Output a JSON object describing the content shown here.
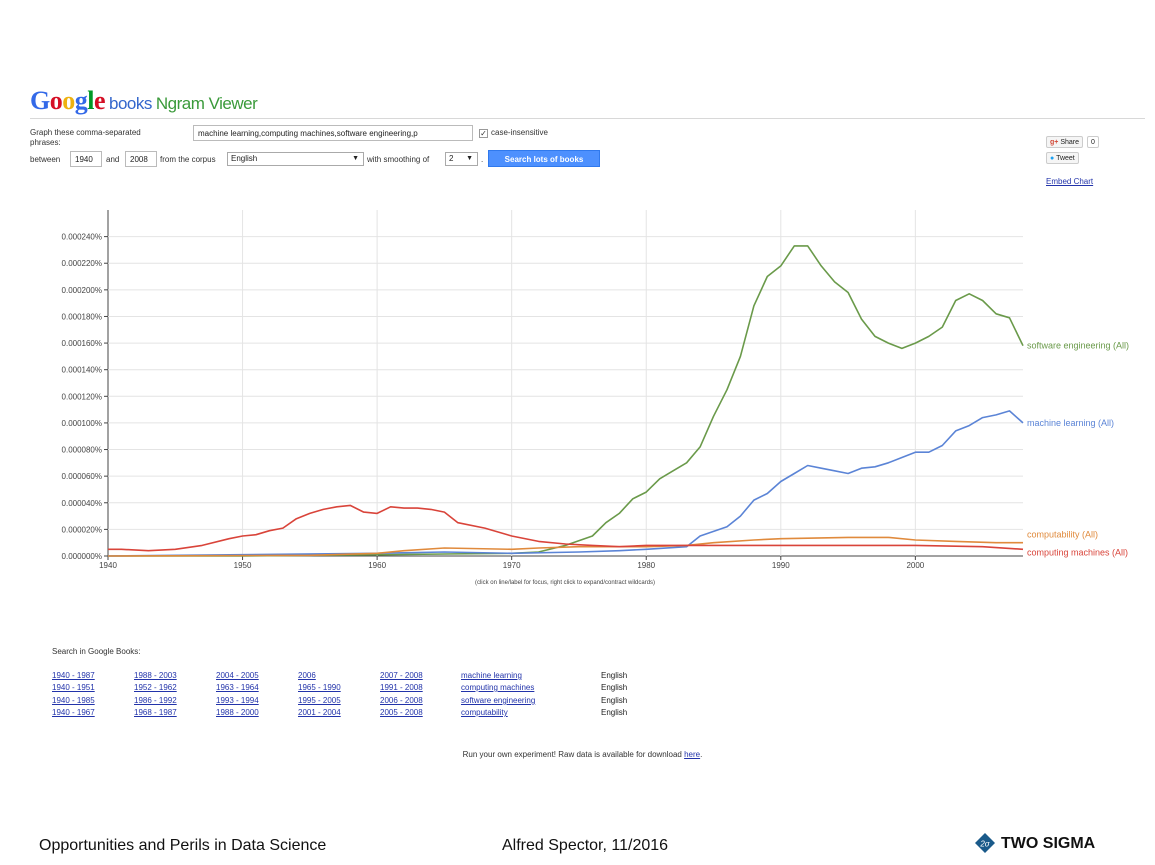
{
  "header": {
    "logo_google": "Google",
    "logo_books": "books",
    "logo_ngram": "Ngram Viewer"
  },
  "form": {
    "graph_label_line1": "Graph these comma-separated",
    "graph_label_line2": "phrases:",
    "phrases_value": "machine learning,computing machines,software engineering,p",
    "case_insensitive_label": "case-insensitive",
    "case_insensitive_checked": "✓",
    "between_label": "between",
    "start_year": "1940",
    "and_label": "and",
    "end_year": "2008",
    "corpus_label": "from the corpus",
    "corpus_value": "English",
    "smoothing_label": "with smoothing of",
    "smoothing_value": "2",
    "period": ".",
    "search_button": "Search lots of books"
  },
  "social": {
    "share_label": "Share",
    "share_count": "0",
    "tweet_label": "Tweet",
    "embed_label": "Embed Chart"
  },
  "chart_data": {
    "type": "line",
    "title": "",
    "xlabel": "",
    "ylabel": "",
    "xlim": [
      1940,
      2008
    ],
    "ylim": [
      0,
      0.00026
    ],
    "x_ticks": [
      "1940",
      "1950",
      "1960",
      "1970",
      "1980",
      "1990",
      "2000"
    ],
    "y_ticks": [
      "0.000000%",
      "0.000020%",
      "0.000040%",
      "0.000060%",
      "0.000080%",
      "0.000100%",
      "0.000120%",
      "0.000140%",
      "0.000160%",
      "0.000180%",
      "0.000200%",
      "0.000220%",
      "0.000240%"
    ],
    "grid": true,
    "legend": "labels at line ends (right)",
    "series": [
      {
        "name": "software engineering (All)",
        "color": "#6a9a4a",
        "points": [
          [
            1940,
            0
          ],
          [
            1950,
            0
          ],
          [
            1955,
            5e-07
          ],
          [
            1960,
            1e-06
          ],
          [
            1965,
            1.5e-06
          ],
          [
            1970,
            2e-06
          ],
          [
            1972,
            3e-06
          ],
          [
            1974,
            8e-06
          ],
          [
            1976,
            1.5e-05
          ],
          [
            1977,
            2.5e-05
          ],
          [
            1978,
            3.2e-05
          ],
          [
            1979,
            4.3e-05
          ],
          [
            1980,
            4.8e-05
          ],
          [
            1981,
            5.8e-05
          ],
          [
            1982,
            6.4e-05
          ],
          [
            1983,
            7e-05
          ],
          [
            1984,
            8.2e-05
          ],
          [
            1985,
            0.000105
          ],
          [
            1986,
            0.000125
          ],
          [
            1987,
            0.00015
          ],
          [
            1988,
            0.000188
          ],
          [
            1989,
            0.00021
          ],
          [
            1990,
            0.000218
          ],
          [
            1991,
            0.000233
          ],
          [
            1992,
            0.000233
          ],
          [
            1993,
            0.000218
          ],
          [
            1994,
            0.000206
          ],
          [
            1995,
            0.000198
          ],
          [
            1996,
            0.000178
          ],
          [
            1997,
            0.000165
          ],
          [
            1998,
            0.00016
          ],
          [
            1999,
            0.000156
          ],
          [
            2000,
            0.00016
          ],
          [
            2001,
            0.000165
          ],
          [
            2002,
            0.000172
          ],
          [
            2003,
            0.000192
          ],
          [
            2004,
            0.000197
          ],
          [
            2005,
            0.000192
          ],
          [
            2006,
            0.000182
          ],
          [
            2007,
            0.000179
          ],
          [
            2008,
            0.000158
          ]
        ]
      },
      {
        "name": "machine learning (All)",
        "color": "#5b84d6",
        "points": [
          [
            1940,
            0
          ],
          [
            1960,
            2e-06
          ],
          [
            1965,
            3e-06
          ],
          [
            1970,
            2e-06
          ],
          [
            1975,
            3e-06
          ],
          [
            1978,
            4e-06
          ],
          [
            1980,
            5e-06
          ],
          [
            1983,
            7e-06
          ],
          [
            1984,
            1.5e-05
          ],
          [
            1986,
            2.2e-05
          ],
          [
            1987,
            3e-05
          ],
          [
            1988,
            4.2e-05
          ],
          [
            1989,
            4.7e-05
          ],
          [
            1990,
            5.6e-05
          ],
          [
            1991,
            6.2e-05
          ],
          [
            1992,
            6.8e-05
          ],
          [
            1993,
            6.6e-05
          ],
          [
            1994,
            6.4e-05
          ],
          [
            1995,
            6.2e-05
          ],
          [
            1996,
            6.6e-05
          ],
          [
            1997,
            6.7e-05
          ],
          [
            1998,
            7e-05
          ],
          [
            1999,
            7.4e-05
          ],
          [
            2000,
            7.8e-05
          ],
          [
            2001,
            7.8e-05
          ],
          [
            2002,
            8.3e-05
          ],
          [
            2003,
            9.4e-05
          ],
          [
            2004,
            9.8e-05
          ],
          [
            2005,
            0.000104
          ],
          [
            2006,
            0.000106
          ],
          [
            2007,
            0.000109
          ],
          [
            2008,
            0.0001
          ]
        ]
      },
      {
        "name": "computability (All)",
        "color": "#e08a3c",
        "points": [
          [
            1940,
            0
          ],
          [
            1955,
            5e-07
          ],
          [
            1960,
            2e-06
          ],
          [
            1962,
            4e-06
          ],
          [
            1965,
            6e-06
          ],
          [
            1970,
            5e-06
          ],
          [
            1972,
            6e-06
          ],
          [
            1975,
            7e-06
          ],
          [
            1980,
            7e-06
          ],
          [
            1983,
            8e-06
          ],
          [
            1985,
            1e-05
          ],
          [
            1988,
            1.2e-05
          ],
          [
            1990,
            1.3e-05
          ],
          [
            1995,
            1.4e-05
          ],
          [
            1998,
            1.4e-05
          ],
          [
            2000,
            1.2e-05
          ],
          [
            2003,
            1.1e-05
          ],
          [
            2006,
            1e-05
          ],
          [
            2008,
            1e-05
          ]
        ]
      },
      {
        "name": "computing machines (All)",
        "color": "#d9443a",
        "points": [
          [
            1940,
            5e-06
          ],
          [
            1941,
            5e-06
          ],
          [
            1943,
            4e-06
          ],
          [
            1945,
            5e-06
          ],
          [
            1947,
            8e-06
          ],
          [
            1949,
            1.3e-05
          ],
          [
            1950,
            1.5e-05
          ],
          [
            1951,
            1.6e-05
          ],
          [
            1952,
            1.9e-05
          ],
          [
            1953,
            2.1e-05
          ],
          [
            1954,
            2.8e-05
          ],
          [
            1955,
            3.2e-05
          ],
          [
            1956,
            3.5e-05
          ],
          [
            1957,
            3.7e-05
          ],
          [
            1958,
            3.8e-05
          ],
          [
            1959,
            3.3e-05
          ],
          [
            1960,
            3.2e-05
          ],
          [
            1961,
            3.7e-05
          ],
          [
            1962,
            3.6e-05
          ],
          [
            1963,
            3.6e-05
          ],
          [
            1964,
            3.5e-05
          ],
          [
            1965,
            3.3e-05
          ],
          [
            1966,
            2.5e-05
          ],
          [
            1968,
            2.1e-05
          ],
          [
            1970,
            1.5e-05
          ],
          [
            1972,
            1.1e-05
          ],
          [
            1974,
            9e-06
          ],
          [
            1976,
            8e-06
          ],
          [
            1978,
            7e-06
          ],
          [
            1980,
            8e-06
          ],
          [
            1985,
            8e-06
          ],
          [
            1990,
            8e-06
          ],
          [
            1995,
            8e-06
          ],
          [
            2000,
            8e-06
          ],
          [
            2005,
            7e-06
          ],
          [
            2008,
            5e-06
          ]
        ]
      }
    ]
  },
  "chart_hint": "(click on line/label for focus, right click to expand/contract wildcards)",
  "search_books": {
    "heading": "Search in Google Books:",
    "rows": [
      [
        "1940 - 1987",
        "1988 - 2003",
        "2004 - 2005",
        "2006",
        "2007 - 2008",
        "machine learning",
        "English"
      ],
      [
        "1940 - 1951",
        "1952 - 1962",
        "1963 - 1964",
        "1965 - 1990",
        "1991 - 2008",
        "computing machines",
        "English"
      ],
      [
        "1940 - 1985",
        "1986 - 1992",
        "1993 - 1994",
        "1995 - 2005",
        "2006 - 2008",
        "software engineering",
        "English"
      ],
      [
        "1940 - 1967",
        "1968 - 1987",
        "1988 - 2000",
        "2001 - 2004",
        "2005 - 2008",
        "computability",
        "English"
      ]
    ]
  },
  "raw_data": {
    "text": "Run your own experiment! Raw data is available for download ",
    "link": "here",
    "end": "."
  },
  "footer": {
    "left": "Opportunities and Perils in Data Science",
    "center": "Alfred Spector, 11/2016",
    "brand": "TWO SIGMA",
    "brand_mark": "2σ"
  }
}
